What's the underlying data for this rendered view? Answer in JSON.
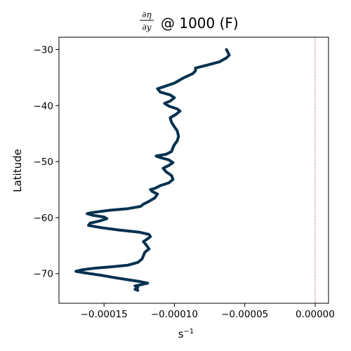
{
  "chart_data": {
    "type": "line",
    "title": {
      "frac_numerator": "∂η",
      "frac_denominator": "∂y",
      "suffix": "@ 1000 (F)"
    },
    "xlabel": "s",
    "xlabel_exponent": "−1",
    "ylabel": "Latitude",
    "xlim": [
      -0.000182,
      9.5e-06
    ],
    "ylim": [
      -75.3,
      -27.8
    ],
    "xticks": [
      {
        "value": -0.00015,
        "label": "−0.00015"
      },
      {
        "value": -0.0001,
        "label": "−0.00010"
      },
      {
        "value": -5e-05,
        "label": "−0.00005"
      },
      {
        "value": 0.0,
        "label": "0.00000"
      }
    ],
    "yticks": [
      {
        "value": -30,
        "label": "−30"
      },
      {
        "value": -40,
        "label": "−40"
      },
      {
        "value": -50,
        "label": "−50"
      },
      {
        "value": -60,
        "label": "−60"
      },
      {
        "value": -70,
        "label": "−70"
      }
    ],
    "grid": false,
    "reference_line": {
      "x": 0.0,
      "color": "#8b0000",
      "style": "dotted"
    },
    "series": [
      {
        "color": "#04314f",
        "points": [
          [
            -6.3e-05,
            -30.0
          ],
          [
            -6.2e-05,
            -30.5
          ],
          [
            -6.1e-05,
            -31.0
          ],
          [
            -6.3e-05,
            -31.5
          ],
          [
            -6.8e-05,
            -32.2
          ],
          [
            -7.7e-05,
            -32.8
          ],
          [
            -8.5e-05,
            -33.3
          ],
          [
            -8.5e-05,
            -33.8
          ],
          [
            -8.7e-05,
            -34.3
          ],
          [
            -9.3e-05,
            -35.0
          ],
          [
            -0.0001,
            -36.0
          ],
          [
            -0.000107,
            -36.6
          ],
          [
            -0.000112,
            -37.0
          ],
          [
            -0.00011,
            -37.6
          ],
          [
            -0.000103,
            -38.1
          ],
          [
            -0.0001,
            -38.6
          ],
          [
            -0.000103,
            -39.2
          ],
          [
            -0.000107,
            -39.6
          ],
          [
            -0.000104,
            -40.1
          ],
          [
            -9.8e-05,
            -40.6
          ],
          [
            -9.6e-05,
            -41.0
          ],
          [
            -9.9e-05,
            -41.6
          ],
          [
            -0.000103,
            -42.2
          ],
          [
            -0.000102,
            -43.0
          ],
          [
            -0.0001,
            -43.8
          ],
          [
            -9.8e-05,
            -44.5
          ],
          [
            -9.7e-05,
            -45.5
          ],
          [
            -9.8e-05,
            -46.3
          ],
          [
            -0.0001,
            -47.0
          ],
          [
            -0.000101,
            -47.5
          ],
          [
            -0.000102,
            -48.2
          ],
          [
            -0.000106,
            -48.7
          ],
          [
            -0.000113,
            -49.0
          ],
          [
            -0.00011,
            -49.3
          ],
          [
            -0.000104,
            -49.7
          ],
          [
            -0.000101,
            -50.2
          ],
          [
            -0.000104,
            -50.7
          ],
          [
            -0.000108,
            -51.2
          ],
          [
            -0.000106,
            -51.8
          ],
          [
            -0.000102,
            -52.5
          ],
          [
            -0.000101,
            -53.2
          ],
          [
            -0.000104,
            -53.8
          ],
          [
            -0.00011,
            -54.3
          ],
          [
            -0.000114,
            -54.8
          ],
          [
            -0.000117,
            -55.0
          ],
          [
            -0.000116,
            -55.3
          ],
          [
            -0.000112,
            -55.8
          ],
          [
            -0.000114,
            -56.5
          ],
          [
            -0.000118,
            -57.1
          ],
          [
            -0.000122,
            -57.6
          ],
          [
            -0.000124,
            -58.0
          ],
          [
            -0.000133,
            -58.4
          ],
          [
            -0.000146,
            -58.7
          ],
          [
            -0.000158,
            -59.1
          ],
          [
            -0.000162,
            -59.3
          ],
          [
            -0.000158,
            -59.6
          ],
          [
            -0.00015,
            -59.9
          ],
          [
            -0.000148,
            -60.2
          ],
          [
            -0.000153,
            -60.6
          ],
          [
            -0.00016,
            -61.0
          ],
          [
            -0.000161,
            -61.4
          ],
          [
            -0.000152,
            -61.8
          ],
          [
            -0.00014,
            -62.2
          ],
          [
            -0.000125,
            -62.6
          ],
          [
            -0.000118,
            -63.0
          ],
          [
            -0.000117,
            -63.4
          ],
          [
            -0.000119,
            -63.8
          ],
          [
            -0.000122,
            -64.3
          ],
          [
            -0.00012,
            -64.9
          ],
          [
            -0.000118,
            -65.6
          ],
          [
            -0.000121,
            -66.2
          ],
          [
            -0.000122,
            -66.8
          ],
          [
            -0.000123,
            -67.4
          ],
          [
            -0.000126,
            -68.0
          ],
          [
            -0.000133,
            -68.5
          ],
          [
            -0.000145,
            -68.8
          ],
          [
            -0.000155,
            -69.0
          ],
          [
            -0.000165,
            -69.3
          ],
          [
            -0.00017,
            -69.6
          ],
          [
            -0.000163,
            -69.9
          ],
          [
            -0.000152,
            -70.3
          ],
          [
            -0.000143,
            -70.7
          ],
          [
            -0.000133,
            -71.1
          ],
          [
            -0.000125,
            -71.4
          ],
          [
            -0.000119,
            -71.7
          ],
          [
            -0.000124,
            -72.0
          ],
          [
            -0.000128,
            -72.2
          ],
          [
            -0.000126,
            -72.5
          ],
          [
            -0.000128,
            -72.8
          ],
          [
            -0.000126,
            -73.0
          ]
        ]
      }
    ]
  }
}
